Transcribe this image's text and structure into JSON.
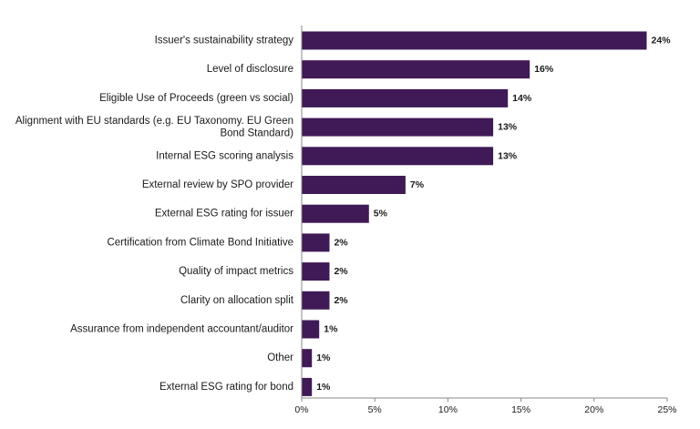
{
  "chart_data": {
    "type": "bar",
    "orientation": "horizontal",
    "title": "",
    "xlabel": "",
    "ylabel": "",
    "bar_color": "#3f1a56",
    "xlim": [
      0,
      25
    ],
    "xticks": [
      "0%",
      "5%",
      "10%",
      "15%",
      "20%",
      "25%"
    ],
    "grid": false,
    "categories": [
      [
        "Issuer's sustainability strategy"
      ],
      [
        "Level of disclosure"
      ],
      [
        "Eligible Use of Proceeds (green vs social)"
      ],
      [
        "Alignment with EU standards (e.g. EU Taxonomy. EU Green",
        "Bond Standard)"
      ],
      [
        "Internal ESG scoring analysis"
      ],
      [
        "External review by SPO provider"
      ],
      [
        "External ESG rating for issuer"
      ],
      [
        "Certification from Climate Bond Initiative"
      ],
      [
        "Quality of impact metrics"
      ],
      [
        "Clarity on allocation split"
      ],
      [
        "Assurance from independent accountant/auditor"
      ],
      [
        "Other"
      ],
      [
        "External ESG rating for bond"
      ]
    ],
    "values": [
      23.6,
      15.6,
      14.1,
      13.1,
      13.1,
      7.1,
      4.6,
      1.9,
      1.9,
      1.9,
      1.2,
      0.7,
      0.7
    ],
    "value_labels": [
      "24%",
      "16%",
      "14%",
      "13%",
      "13%",
      "7%",
      "5%",
      "2%",
      "2%",
      "2%",
      "1%",
      "1%",
      "1%"
    ]
  }
}
